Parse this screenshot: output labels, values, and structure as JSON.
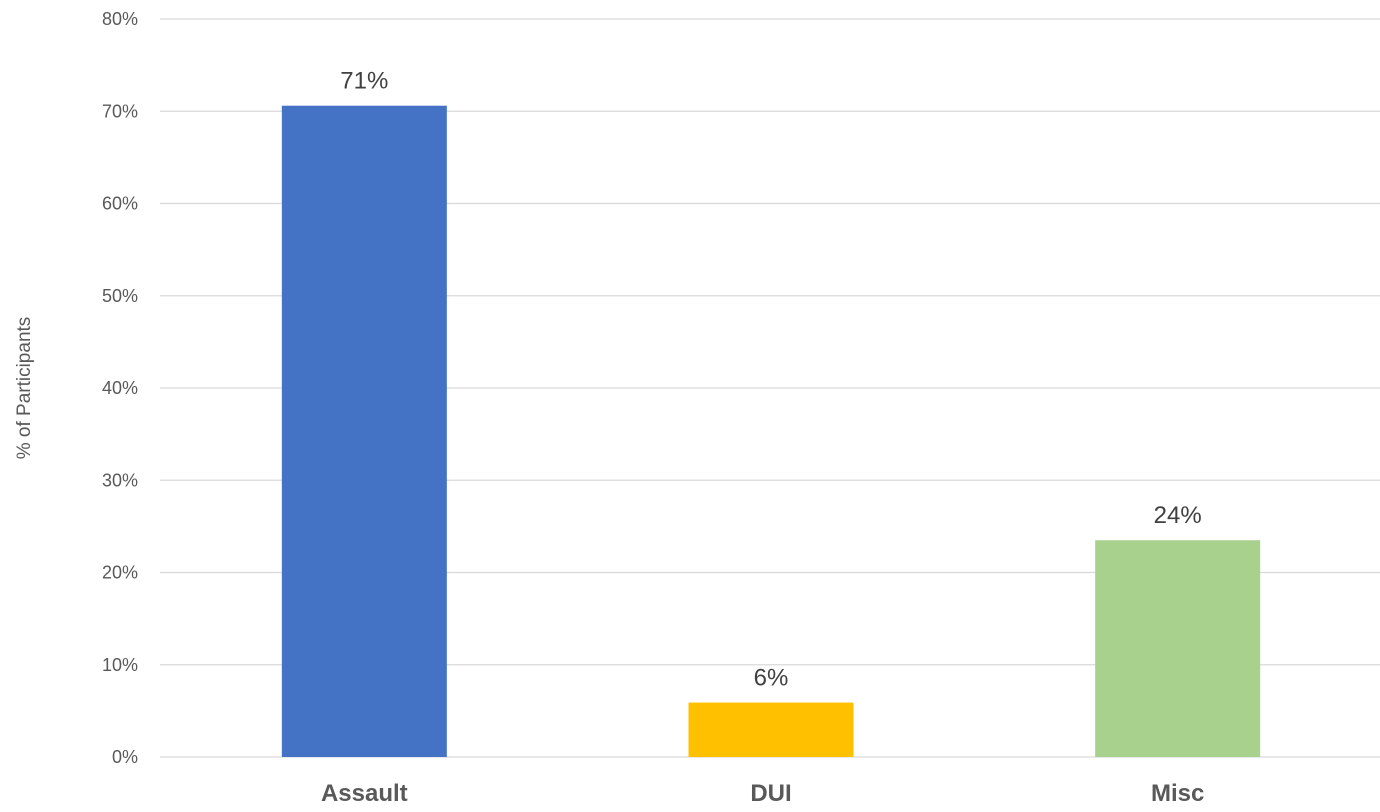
{
  "chart_data": {
    "type": "bar",
    "title": "",
    "xlabel": "",
    "ylabel": "% of Participants",
    "ylim": [
      0,
      80
    ],
    "yticks": [
      0,
      10,
      20,
      30,
      40,
      50,
      60,
      70,
      80
    ],
    "ytick_labels": [
      "0%",
      "10%",
      "20%",
      "30%",
      "40%",
      "50%",
      "60%",
      "70%",
      "80%"
    ],
    "categories": [
      "Assault",
      "DUI",
      "Misc"
    ],
    "values": [
      70.6,
      5.9,
      23.5
    ],
    "data_labels": [
      "71%",
      "6%",
      "24%"
    ],
    "colors": [
      "#4472c4",
      "#ffc000",
      "#a9d18e"
    ],
    "grid": true,
    "legend": "none"
  }
}
